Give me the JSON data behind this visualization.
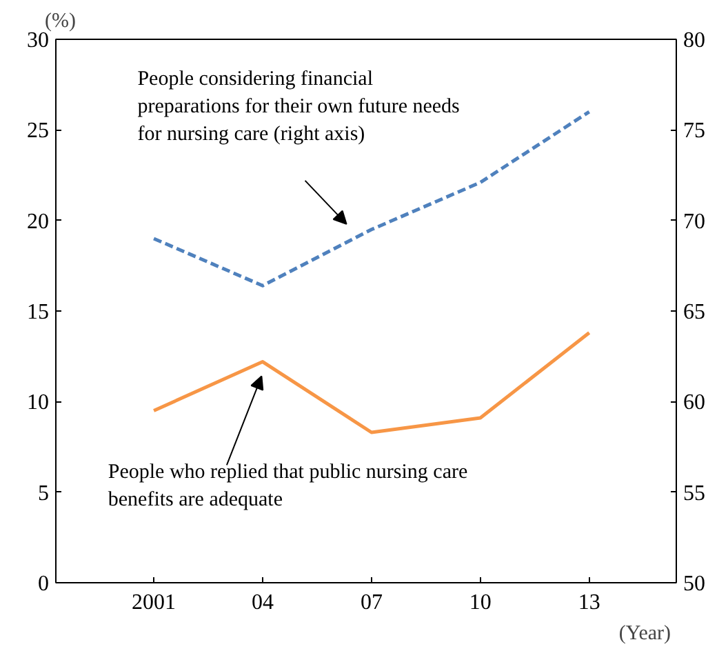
{
  "chart_data": {
    "type": "line",
    "categories": [
      "2001",
      "04",
      "07",
      "10",
      "13"
    ],
    "xlabel": "(Year)",
    "ylabel": "(%)",
    "ylim": [
      0,
      30
    ],
    "yticks": [
      0,
      5,
      10,
      15,
      20,
      25,
      30
    ],
    "y2lim": [
      50,
      80
    ],
    "y2ticks": [
      50,
      55,
      60,
      65,
      70,
      75,
      80
    ],
    "grid": false,
    "marker": "none",
    "series": [
      {
        "name": "People who replied that public nursing care\nbenefits are adequate",
        "color": "#f79646",
        "line_style": "solid",
        "values": [
          9.5,
          12.2,
          8.3,
          9.1,
          13.8
        ]
      },
      {
        "name": "People considering financial\npreparations for their own future needs\nfor nursing care (right axis)",
        "color": "#4f81bd",
        "line_style": "dashed",
        "axis": "y2",
        "values": [
          69.0,
          66.4,
          69.5,
          72.1,
          76.0
        ]
      }
    ]
  }
}
